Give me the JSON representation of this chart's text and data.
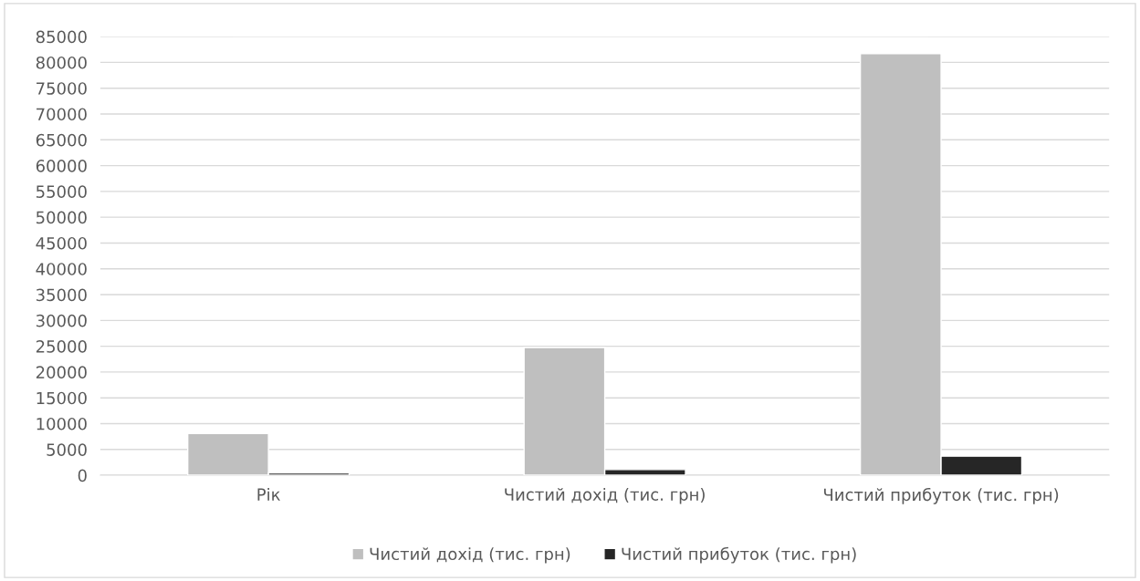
{
  "chart_data": {
    "type": "bar",
    "categories": [
      "Рік",
      "Чистий дохід (тис. грн)",
      "Чистий прибуток (тис. грн)"
    ],
    "series": [
      {
        "name": "Чистий дохід (тис. грн)",
        "color": "#bfbfbf",
        "values": [
          8100,
          24750,
          81700
        ]
      },
      {
        "name": "Чистий прибуток (тис. грн)",
        "color": "#262626",
        "values": [
          450,
          1100,
          3700
        ]
      }
    ],
    "ylim": [
      0,
      85000
    ],
    "yticks": [
      0,
      5000,
      10000,
      15000,
      20000,
      25000,
      30000,
      35000,
      40000,
      45000,
      50000,
      55000,
      60000,
      65000,
      70000,
      75000,
      80000,
      85000
    ],
    "grid": "y",
    "legend": "bottom"
  }
}
